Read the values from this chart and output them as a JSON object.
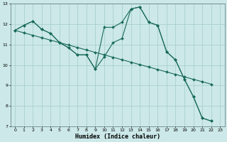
{
  "xlabel": "Humidex (Indice chaleur)",
  "bg_color": "#cce8e8",
  "grid_color": "#aacfcf",
  "line_color": "#1a6b5a",
  "xlim": [
    -0.5,
    23.5
  ],
  "ylim": [
    7,
    13
  ],
  "yticks": [
    7,
    8,
    9,
    10,
    11,
    12,
    13
  ],
  "xticks": [
    0,
    1,
    2,
    3,
    4,
    5,
    6,
    7,
    8,
    9,
    10,
    11,
    12,
    13,
    14,
    15,
    16,
    17,
    18,
    19,
    20,
    21,
    22,
    23
  ],
  "line1_x": [
    0,
    1,
    2,
    3,
    4,
    5,
    6,
    7,
    8,
    9,
    10,
    11,
    12,
    13,
    14,
    15,
    16,
    17,
    18,
    19,
    20,
    21,
    22
  ],
  "line1_y": [
    11.7,
    11.95,
    12.15,
    11.75,
    11.55,
    11.1,
    10.85,
    10.5,
    10.5,
    9.8,
    11.85,
    11.85,
    12.1,
    12.75,
    12.85,
    12.1,
    11.95,
    10.65,
    10.25,
    9.3,
    8.45,
    7.4,
    7.25
  ],
  "line2_x": [
    0,
    1,
    2,
    3,
    4,
    5,
    6,
    7,
    8,
    9,
    10,
    11,
    12,
    13,
    14,
    15,
    16,
    17,
    18,
    19,
    20,
    21,
    22
  ],
  "line2_y": [
    11.7,
    11.95,
    12.15,
    11.75,
    11.55,
    11.1,
    10.85,
    10.5,
    10.5,
    9.8,
    10.4,
    11.1,
    11.3,
    12.75,
    12.85,
    12.1,
    11.95,
    10.65,
    10.25,
    9.3,
    8.45,
    7.4,
    7.25
  ],
  "line3_x": [
    0,
    1,
    2,
    3,
    4,
    5,
    6,
    7,
    8,
    9,
    10,
    11,
    12,
    13,
    14,
    15,
    16,
    17,
    18,
    19,
    20,
    21,
    22
  ],
  "line3_y": [
    11.7,
    11.58,
    11.46,
    11.34,
    11.22,
    11.1,
    10.98,
    10.86,
    10.74,
    10.62,
    10.5,
    10.38,
    10.26,
    10.14,
    10.02,
    9.9,
    9.78,
    9.66,
    9.54,
    9.42,
    9.3,
    9.18,
    9.06
  ]
}
